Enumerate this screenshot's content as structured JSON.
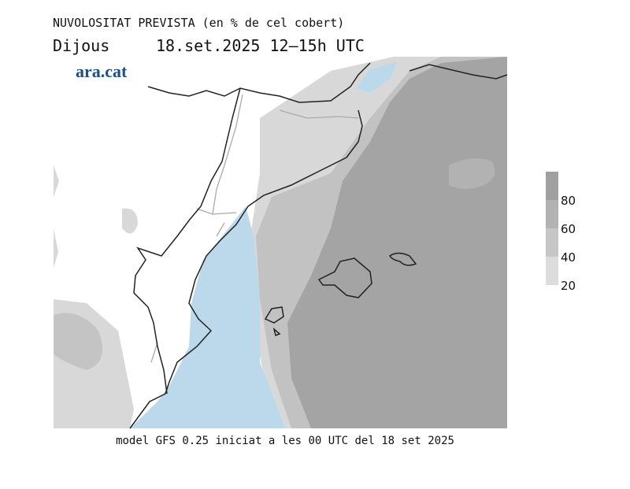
{
  "title": "NUVOLOSITAT PREVISTA (en % de cel cobert)",
  "day": "Dijous",
  "date_time": "18.set.2025 12‒15h UTC",
  "logo": "ara.cat",
  "footer": "model GFS 0.25 iniciat a les 00 UTC del 18 set 2025",
  "legend": {
    "ticks": [
      20,
      40,
      60,
      80
    ],
    "colors": [
      "#dcdcdc",
      "#c6c6c6",
      "#b2b2b2",
      "#a0a0a0"
    ]
  }
}
